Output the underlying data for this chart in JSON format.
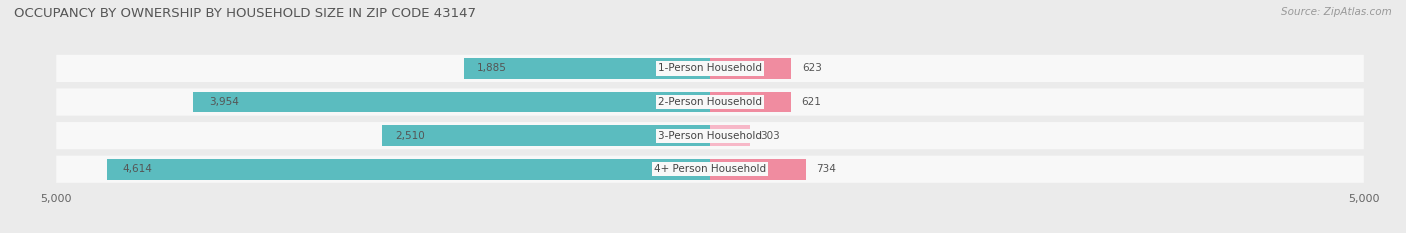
{
  "title": "OCCUPANCY BY OWNERSHIP BY HOUSEHOLD SIZE IN ZIP CODE 43147",
  "source": "Source: ZipAtlas.com",
  "categories": [
    "1-Person Household",
    "2-Person Household",
    "3-Person Household",
    "4+ Person Household"
  ],
  "owner_values": [
    1885,
    3954,
    2510,
    4614
  ],
  "renter_values": [
    623,
    621,
    303,
    734
  ],
  "owner_color": "#5bbcbf",
  "renter_color": "#f08ca0",
  "renter_color_light": "#f7b8c8",
  "bar_height": 0.62,
  "xlim": 5000,
  "background_color": "#ebebeb",
  "bar_background_color": "#f8f8f8",
  "title_fontsize": 9.5,
  "source_fontsize": 7.5,
  "label_fontsize": 7.5,
  "value_fontsize": 7.5,
  "tick_fontsize": 8,
  "legend_fontsize": 8
}
